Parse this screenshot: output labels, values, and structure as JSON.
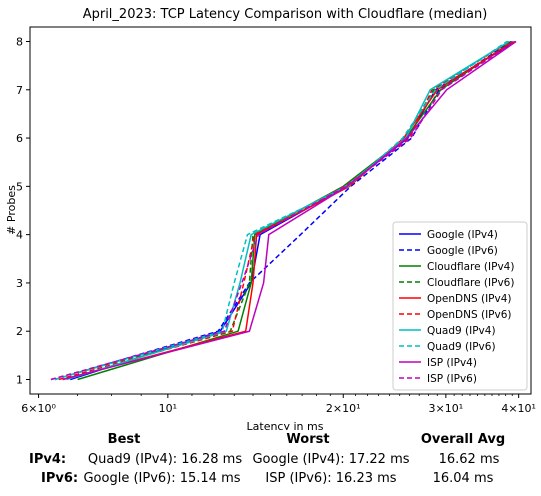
{
  "chart_data": {
    "type": "line",
    "title": "April_2023: TCP Latency Comparison with Cloudflare (median)",
    "xlabel": "Latency in ms",
    "ylabel": "# Probes",
    "xscale": "log",
    "xlim": [
      5.8,
      42
    ],
    "ylim": [
      0.7,
      8.3
    ],
    "x_ticks": [
      {
        "value": 6,
        "label": "6×10⁰"
      },
      {
        "value": 10,
        "label": "10¹"
      },
      {
        "value": 20,
        "label": "2×10¹"
      },
      {
        "value": 30,
        "label": "3×10¹"
      },
      {
        "value": 40,
        "label": "4×10¹"
      }
    ],
    "y_ticks": [
      1,
      2,
      3,
      4,
      5,
      6,
      7,
      8
    ],
    "grid": false,
    "legend_position": "lower right",
    "series": [
      {
        "name": "Google (IPv4)",
        "color": "#0000ff",
        "dash": "solid",
        "x": [
          6.8,
          12.3,
          13.9,
          14.4,
          20.3,
          25.8,
          28.8,
          39.5
        ],
        "y": [
          1,
          2,
          3,
          4,
          5,
          6,
          7,
          8
        ]
      },
      {
        "name": "Google (IPv6)",
        "color": "#0000ff",
        "dash": "dashed",
        "x": [
          6.4,
          12.2,
          13.8,
          16.9,
          20.6,
          26.2,
          29.2,
          38.8
        ],
        "y": [
          1,
          2,
          3,
          4,
          5,
          6,
          7,
          8
        ]
      },
      {
        "name": "Cloudflare (IPv4)",
        "color": "#008000",
        "dash": "solid",
        "x": [
          7.0,
          13.2,
          13.9,
          14.1,
          20.0,
          25.6,
          29.4,
          39.0
        ],
        "y": [
          1,
          2,
          3,
          4,
          5,
          6,
          7,
          8
        ]
      },
      {
        "name": "Cloudflare (IPv6)",
        "color": "#008000",
        "dash": "dashed",
        "x": [
          6.3,
          12.8,
          13.8,
          14.0,
          20.3,
          25.5,
          28.6,
          38.4
        ],
        "y": [
          1,
          2,
          3,
          4,
          5,
          6,
          7,
          8
        ]
      },
      {
        "name": "OpenDNS (IPv4)",
        "color": "#ff0000",
        "dash": "solid",
        "x": [
          6.6,
          13.6,
          14.0,
          14.2,
          20.5,
          25.4,
          29.0,
          39.2
        ],
        "y": [
          1,
          2,
          3,
          4,
          5,
          6,
          7,
          8
        ]
      },
      {
        "name": "OpenDNS (IPv6)",
        "color": "#ff0000",
        "dash": "dashed",
        "x": [
          6.5,
          12.9,
          13.5,
          14.1,
          20.1,
          26.0,
          28.4,
          38.6
        ],
        "y": [
          1,
          2,
          3,
          4,
          5,
          6,
          7,
          8
        ]
      },
      {
        "name": "Quad9 (IPv4)",
        "color": "#00bfbf",
        "dash": "solid",
        "x": [
          6.7,
          12.6,
          13.3,
          13.9,
          20.2,
          25.6,
          28.2,
          38.5
        ],
        "y": [
          1,
          2,
          3,
          4,
          5,
          6,
          7,
          8
        ]
      },
      {
        "name": "Quad9 (IPv6)",
        "color": "#00bfbf",
        "dash": "dashed",
        "x": [
          6.4,
          12.4,
          13.0,
          13.7,
          20.4,
          25.3,
          28.8,
          38.2
        ],
        "y": [
          1,
          2,
          3,
          4,
          5,
          6,
          7,
          8
        ]
      },
      {
        "name": "ISP (IPv4)",
        "color": "#bf00bf",
        "dash": "solid",
        "x": [
          6.6,
          13.8,
          14.6,
          14.9,
          20.3,
          25.7,
          30.1,
          39.6
        ],
        "y": [
          1,
          2,
          3,
          4,
          5,
          6,
          7,
          8
        ]
      },
      {
        "name": "ISP (IPv6)",
        "color": "#bf00bf",
        "dash": "dashed",
        "x": [
          6.3,
          12.5,
          13.4,
          14.3,
          20.2,
          26.1,
          29.5,
          39.4
        ],
        "y": [
          1,
          2,
          3,
          4,
          5,
          6,
          7,
          8
        ]
      }
    ]
  },
  "summary_table": {
    "headers": {
      "best": "Best",
      "worst": "Worst",
      "avg": "Overall Avg"
    },
    "rows": [
      {
        "label": "IPv4:",
        "best": "Quad9 (IPv4): 16.28 ms",
        "worst": "Google (IPv4): 17.22 ms",
        "avg": "16.62 ms"
      },
      {
        "label": "IPv6:",
        "best": "Google (IPv6): 15.14 ms",
        "worst": "ISP (IPv6): 16.23 ms",
        "avg": "16.04 ms"
      }
    ]
  }
}
